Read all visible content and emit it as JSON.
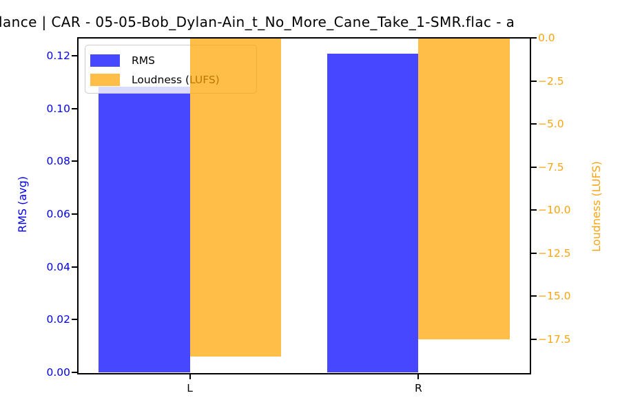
{
  "figure": {
    "title": "lance | CAR - 05-05-Bob_Dylan-Ain_t_No_More_Cane_Take_1-SMR.flac - a"
  },
  "chart_data": {
    "type": "bar",
    "subtype": "grouped-dual-axis",
    "title": "lance | CAR - 05-05-Bob_Dylan-Ain_t_No_More_Cane_Take_1-SMR.flac - a",
    "categories": [
      "L",
      "R"
    ],
    "series": [
      {
        "name": "RMS",
        "axis": "left",
        "values": [
          0.1083,
          0.1208
        ],
        "color": "rgba(0,0,255,0.72)"
      },
      {
        "name": "Loudness (LUFS)",
        "axis": "right",
        "values": [
          -18.5,
          -17.5
        ],
        "color": "rgba(255,165,0,0.72)"
      }
    ],
    "bar_width": 0.4,
    "xlim": [
      -0.49,
      1.49
    ],
    "left_axis": {
      "label": "RMS (avg)",
      "text_color": "#0000ee",
      "lim": [
        0,
        0.1268
      ],
      "tick_values": [
        0,
        0.02,
        0.04,
        0.06,
        0.08,
        0.1,
        0.12
      ],
      "tick_labels": [
        "0.00",
        "0.02",
        "0.04",
        "0.06",
        "0.08",
        "0.10",
        "0.12"
      ]
    },
    "right_axis": {
      "label": "Loudness (LUFS)",
      "text_color": "#f9a40f",
      "lim": [
        -19.43,
        0
      ],
      "tick_values": [
        0,
        -2.5,
        -5,
        -7.5,
        -10,
        -12.5,
        -15,
        -17.5
      ],
      "tick_labels": [
        "0.0",
        "−2.5",
        "−5.0",
        "−7.5",
        "−10.0",
        "−12.5",
        "−15.0",
        "−17.5"
      ]
    },
    "x_tick_labels": [
      "L",
      "R"
    ],
    "legend": {
      "position": "upper-left",
      "entries": [
        "RMS",
        "Loudness (LUFS)"
      ]
    },
    "grid": false,
    "background": "#ffffff"
  }
}
